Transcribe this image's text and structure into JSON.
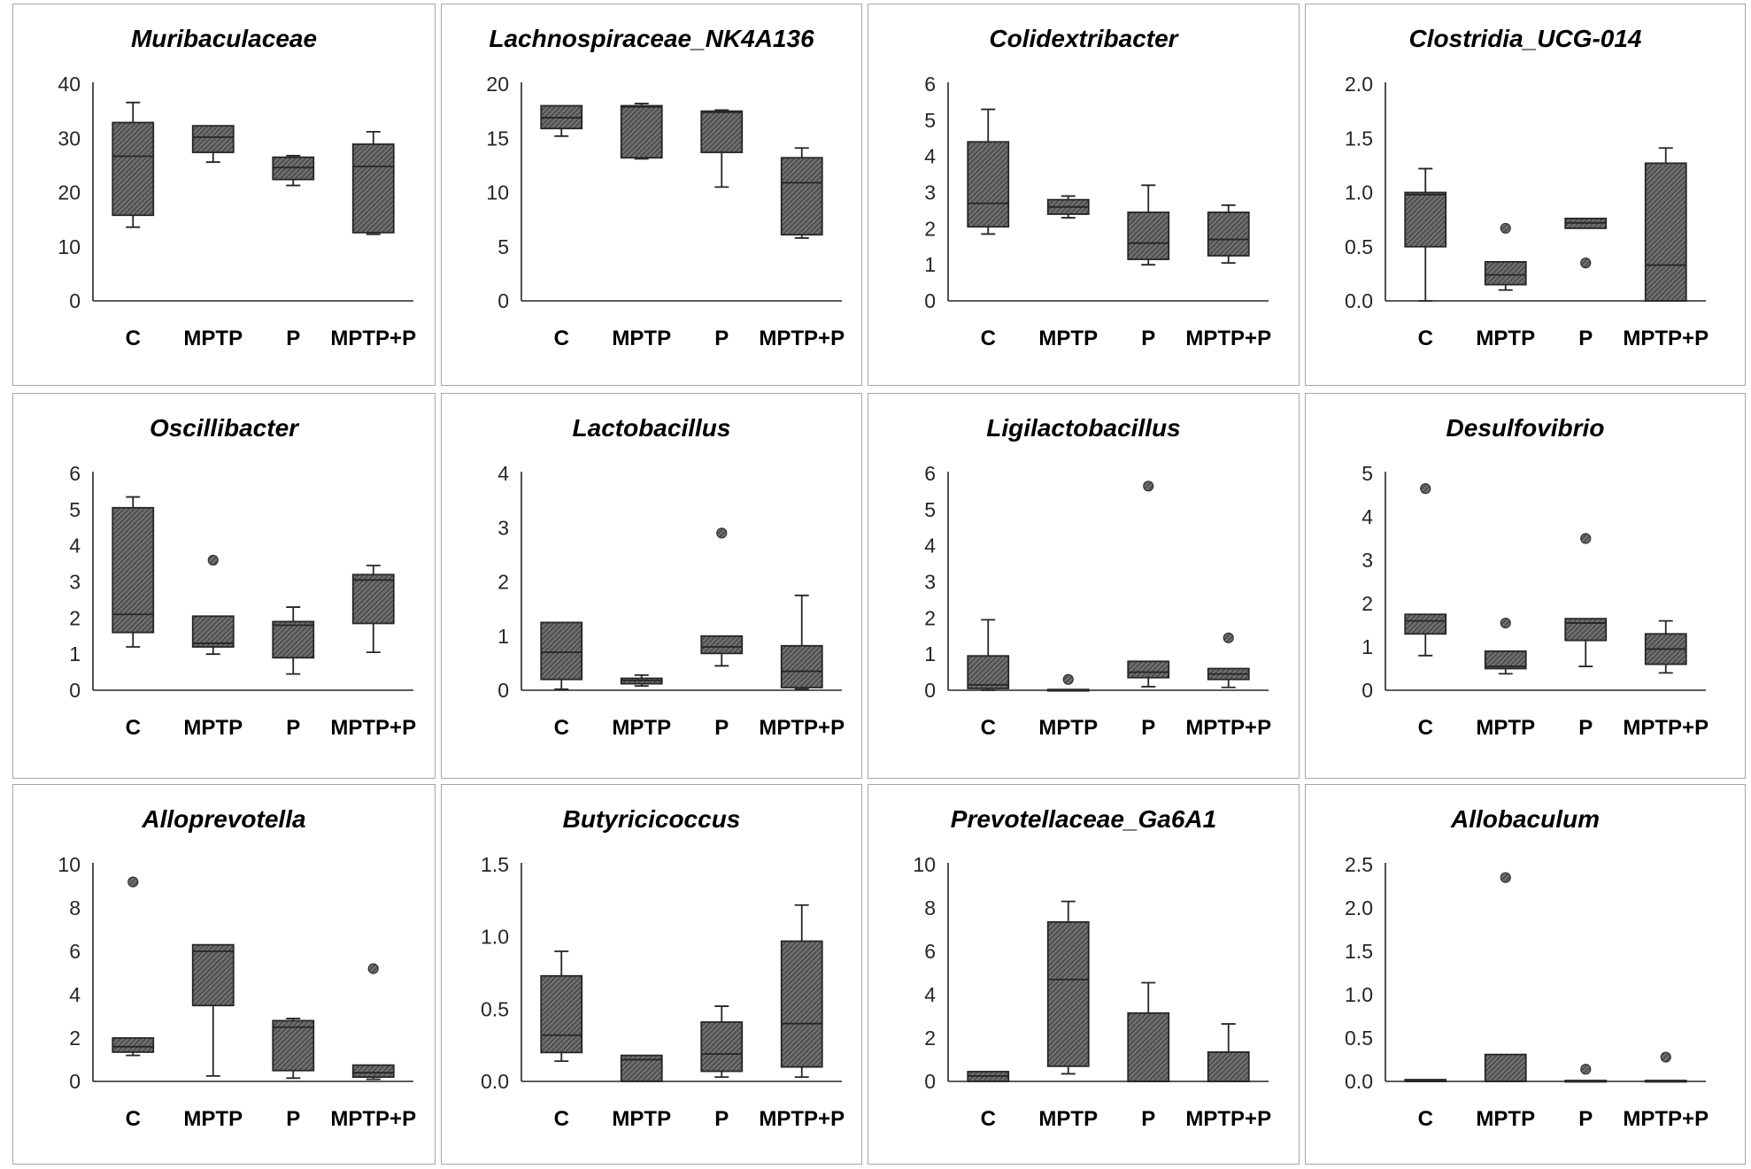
{
  "colors": {
    "box_fill": "#6e6e6e",
    "hatch": "#3a3a3a",
    "axis": "#262626",
    "panel_border": "#a6a6a6"
  },
  "chart_data": [
    {
      "type": "boxplot",
      "title": "Muribaculaceae",
      "categories": [
        "C",
        "MPTP",
        "P",
        "MPTP+P"
      ],
      "ylim": [
        0,
        40
      ],
      "yticks": [
        "0",
        "10",
        "20",
        "30",
        "40"
      ],
      "ytick_values": [
        0,
        10,
        20,
        30,
        40
      ],
      "boxes": [
        {
          "min": 13.6,
          "q1": 15.8,
          "median": 26.7,
          "q3": 32.9,
          "max": 36.6,
          "outliers": []
        },
        {
          "min": 25.6,
          "q1": 27.4,
          "median": 30.2,
          "q3": 32.3,
          "max": 32.3,
          "outliers": []
        },
        {
          "min": 21.3,
          "q1": 22.4,
          "median": 24.6,
          "q3": 26.5,
          "max": 26.8,
          "outliers": []
        },
        {
          "min": 12.3,
          "q1": 12.6,
          "median": 24.8,
          "q3": 28.9,
          "max": 31.2,
          "outliers": []
        }
      ]
    },
    {
      "type": "boxplot",
      "title": "Lachnospiraceae_NK4A136",
      "categories": [
        "C",
        "MPTP",
        "P",
        "MPTP+P"
      ],
      "ylim": [
        0,
        20
      ],
      "yticks": [
        "0",
        "5",
        "10",
        "15",
        "20"
      ],
      "ytick_values": [
        0,
        5,
        10,
        15,
        20
      ],
      "boxes": [
        {
          "min": 15.2,
          "q1": 15.9,
          "median": 16.9,
          "q3": 18.0,
          "max": 18.0,
          "outliers": []
        },
        {
          "min": 13.1,
          "q1": 13.2,
          "median": 17.9,
          "q3": 18.0,
          "max": 18.2,
          "outliers": []
        },
        {
          "min": 10.5,
          "q1": 13.7,
          "median": 17.4,
          "q3": 17.5,
          "max": 17.6,
          "outliers": []
        },
        {
          "min": 5.8,
          "q1": 6.1,
          "median": 10.9,
          "q3": 13.2,
          "max": 14.1,
          "outliers": []
        }
      ]
    },
    {
      "type": "boxplot",
      "title": "Colidextribacter",
      "categories": [
        "C",
        "MPTP",
        "P",
        "MPTP+P"
      ],
      "ylim": [
        0,
        6
      ],
      "yticks": [
        "0",
        "1",
        "2",
        "3",
        "4",
        "5",
        "6"
      ],
      "ytick_values": [
        0,
        1,
        2,
        3,
        4,
        5,
        6
      ],
      "boxes": [
        {
          "min": 1.85,
          "q1": 2.05,
          "median": 2.7,
          "q3": 4.4,
          "max": 5.3,
          "outliers": []
        },
        {
          "min": 2.3,
          "q1": 2.4,
          "median": 2.6,
          "q3": 2.8,
          "max": 2.9,
          "outliers": []
        },
        {
          "min": 1.0,
          "q1": 1.15,
          "median": 1.6,
          "q3": 2.45,
          "max": 3.2,
          "outliers": []
        },
        {
          "min": 1.05,
          "q1": 1.25,
          "median": 1.7,
          "q3": 2.45,
          "max": 2.65,
          "outliers": []
        }
      ]
    },
    {
      "type": "boxplot",
      "title": "Clostridia_UCG-014",
      "categories": [
        "C",
        "MPTP",
        "P",
        "MPTP+P"
      ],
      "ylim": [
        0,
        2
      ],
      "yticks": [
        "0.0",
        "0.5",
        "1.0",
        "1.5",
        "2.0"
      ],
      "ytick_values": [
        0,
        0.5,
        1.0,
        1.5,
        2.0
      ],
      "boxes": [
        {
          "min": 0.0,
          "q1": 0.5,
          "median": 0.98,
          "q3": 1.0,
          "max": 1.22,
          "outliers": []
        },
        {
          "min": 0.1,
          "q1": 0.15,
          "median": 0.24,
          "q3": 0.36,
          "max": 0.36,
          "outliers": [
            0.67
          ]
        },
        {
          "min": 0.67,
          "q1": 0.67,
          "median": 0.72,
          "q3": 0.76,
          "max": 0.76,
          "outliers": [
            0.35
          ]
        },
        {
          "min": 0.0,
          "q1": 0.0,
          "median": 0.33,
          "q3": 1.27,
          "max": 1.41,
          "outliers": []
        }
      ]
    },
    {
      "type": "boxplot",
      "title": "Oscillibacter",
      "categories": [
        "C",
        "MPTP",
        "P",
        "MPTP+P"
      ],
      "ylim": [
        0,
        6
      ],
      "yticks": [
        "0",
        "1",
        "2",
        "3",
        "4",
        "5",
        "6"
      ],
      "ytick_values": [
        0,
        1,
        2,
        3,
        4,
        5,
        6
      ],
      "boxes": [
        {
          "min": 1.2,
          "q1": 1.6,
          "median": 2.1,
          "q3": 5.05,
          "max": 5.35,
          "outliers": []
        },
        {
          "min": 1.0,
          "q1": 1.2,
          "median": 1.3,
          "q3": 2.05,
          "max": 2.05,
          "outliers": [
            3.6
          ]
        },
        {
          "min": 0.45,
          "q1": 0.9,
          "median": 1.8,
          "q3": 1.9,
          "max": 2.3,
          "outliers": []
        },
        {
          "min": 1.05,
          "q1": 1.85,
          "median": 3.05,
          "q3": 3.2,
          "max": 3.45,
          "outliers": []
        }
      ]
    },
    {
      "type": "boxplot",
      "title": "Lactobacillus",
      "categories": [
        "C",
        "MPTP",
        "P",
        "MPTP+P"
      ],
      "ylim": [
        0,
        4
      ],
      "yticks": [
        "0",
        "1",
        "2",
        "3",
        "4"
      ],
      "ytick_values": [
        0,
        1,
        2,
        3,
        4
      ],
      "boxes": [
        {
          "min": 0.02,
          "q1": 0.2,
          "median": 0.7,
          "q3": 1.25,
          "max": 1.25,
          "outliers": []
        },
        {
          "min": 0.08,
          "q1": 0.12,
          "median": 0.18,
          "q3": 0.22,
          "max": 0.28,
          "outliers": []
        },
        {
          "min": 0.45,
          "q1": 0.68,
          "median": 0.8,
          "q3": 1.0,
          "max": 1.0,
          "outliers": [
            2.9
          ]
        },
        {
          "min": 0.02,
          "q1": 0.05,
          "median": 0.35,
          "q3": 0.82,
          "max": 1.75,
          "outliers": []
        }
      ]
    },
    {
      "type": "boxplot",
      "title": "Ligilactobacillus",
      "categories": [
        "C",
        "MPTP",
        "P",
        "MPTP+P"
      ],
      "ylim": [
        0,
        6
      ],
      "yticks": [
        "0",
        "1",
        "2",
        "3",
        "4",
        "5",
        "6"
      ],
      "ytick_values": [
        0,
        1,
        2,
        3,
        4,
        5,
        6
      ],
      "boxes": [
        {
          "min": 0.0,
          "q1": 0.05,
          "median": 0.15,
          "q3": 0.95,
          "max": 1.95,
          "outliers": []
        },
        {
          "min": 0.0,
          "q1": 0.0,
          "median": 0.0,
          "q3": 0.02,
          "max": 0.02,
          "outliers": [
            0.3
          ]
        },
        {
          "min": 0.1,
          "q1": 0.35,
          "median": 0.5,
          "q3": 0.8,
          "max": 0.8,
          "outliers": [
            5.65
          ]
        },
        {
          "min": 0.08,
          "q1": 0.3,
          "median": 0.45,
          "q3": 0.6,
          "max": 0.6,
          "outliers": [
            1.45
          ]
        }
      ]
    },
    {
      "type": "boxplot",
      "title": "Desulfovibrio",
      "categories": [
        "C",
        "MPTP",
        "P",
        "MPTP+P"
      ],
      "ylim": [
        0,
        5
      ],
      "yticks": [
        "0",
        "1",
        "2",
        "3",
        "4",
        "5"
      ],
      "ytick_values": [
        0,
        1,
        2,
        3,
        4,
        5
      ],
      "boxes": [
        {
          "min": 0.8,
          "q1": 1.3,
          "median": 1.6,
          "q3": 1.75,
          "max": 1.75,
          "outliers": [
            4.65
          ]
        },
        {
          "min": 0.38,
          "q1": 0.5,
          "median": 0.55,
          "q3": 0.9,
          "max": 0.9,
          "outliers": [
            1.55
          ]
        },
        {
          "min": 0.55,
          "q1": 1.15,
          "median": 1.55,
          "q3": 1.65,
          "max": 1.65,
          "outliers": [
            3.5
          ]
        },
        {
          "min": 0.4,
          "q1": 0.6,
          "median": 0.95,
          "q3": 1.3,
          "max": 1.6,
          "outliers": []
        }
      ]
    },
    {
      "type": "boxplot",
      "title": "Alloprevotella",
      "categories": [
        "C",
        "MPTP",
        "P",
        "MPTP+P"
      ],
      "ylim": [
        0,
        10
      ],
      "yticks": [
        "0",
        "2",
        "4",
        "6",
        "8",
        "10"
      ],
      "ytick_values": [
        0,
        2,
        4,
        6,
        8,
        10
      ],
      "boxes": [
        {
          "min": 1.2,
          "q1": 1.35,
          "median": 1.6,
          "q3": 2.0,
          "max": 2.0,
          "outliers": [
            9.2
          ]
        },
        {
          "min": 0.25,
          "q1": 3.5,
          "median": 6.0,
          "q3": 6.3,
          "max": 6.3,
          "outliers": []
        },
        {
          "min": 0.15,
          "q1": 0.5,
          "median": 2.5,
          "q3": 2.8,
          "max": 2.9,
          "outliers": []
        },
        {
          "min": 0.1,
          "q1": 0.2,
          "median": 0.4,
          "q3": 0.75,
          "max": 0.75,
          "outliers": [
            5.2
          ]
        }
      ]
    },
    {
      "type": "boxplot",
      "title": "Butyricicoccus",
      "categories": [
        "C",
        "MPTP",
        "P",
        "MPTP+P"
      ],
      "ylim": [
        0,
        1.5
      ],
      "yticks": [
        "0.0",
        "0.5",
        "1.0",
        "1.5"
      ],
      "ytick_values": [
        0,
        0.5,
        1.0,
        1.5
      ],
      "boxes": [
        {
          "min": 0.14,
          "q1": 0.2,
          "median": 0.32,
          "q3": 0.73,
          "max": 0.9,
          "outliers": []
        },
        {
          "min": 0.0,
          "q1": 0.0,
          "median": 0.15,
          "q3": 0.18,
          "max": 0.18,
          "outliers": []
        },
        {
          "min": 0.03,
          "q1": 0.07,
          "median": 0.19,
          "q3": 0.41,
          "max": 0.52,
          "outliers": []
        },
        {
          "min": 0.03,
          "q1": 0.1,
          "median": 0.4,
          "q3": 0.97,
          "max": 1.22,
          "outliers": []
        }
      ]
    },
    {
      "type": "boxplot",
      "title": "Prevotellaceae_Ga6A1",
      "categories": [
        "C",
        "MPTP",
        "P",
        "MPTP+P"
      ],
      "ylim": [
        0,
        10
      ],
      "yticks": [
        "0",
        "2",
        "4",
        "6",
        "8",
        "10"
      ],
      "ytick_values": [
        0,
        2,
        4,
        6,
        8,
        10
      ],
      "boxes": [
        {
          "min": 0.0,
          "q1": 0.0,
          "median": 0.25,
          "q3": 0.45,
          "max": 0.45,
          "outliers": []
        },
        {
          "min": 0.35,
          "q1": 0.7,
          "median": 4.7,
          "q3": 7.35,
          "max": 8.3,
          "outliers": []
        },
        {
          "min": 0.0,
          "q1": 0.0,
          "median": 0.0,
          "q3": 3.15,
          "max": 4.55,
          "outliers": []
        },
        {
          "min": 0.0,
          "q1": 0.0,
          "median": 0.0,
          "q3": 1.35,
          "max": 2.65,
          "outliers": []
        }
      ]
    },
    {
      "type": "boxplot",
      "title": "Allobaculum",
      "categories": [
        "C",
        "MPTP",
        "P",
        "MPTP+P"
      ],
      "ylim": [
        0,
        2.5
      ],
      "yticks": [
        "0.0",
        "0.5",
        "1.0",
        "1.5",
        "2.0",
        "2.5"
      ],
      "ytick_values": [
        0,
        0.5,
        1.0,
        1.5,
        2.0,
        2.5
      ],
      "boxes": [
        {
          "min": 0.0,
          "q1": 0.0,
          "median": 0.0,
          "q3": 0.02,
          "max": 0.02,
          "outliers": []
        },
        {
          "min": 0.0,
          "q1": 0.0,
          "median": 0.0,
          "q3": 0.31,
          "max": 0.31,
          "outliers": [
            2.35
          ]
        },
        {
          "min": 0.0,
          "q1": 0.0,
          "median": 0.0,
          "q3": 0.01,
          "max": 0.01,
          "outliers": [
            0.14
          ]
        },
        {
          "min": 0.0,
          "q1": 0.0,
          "median": 0.0,
          "q3": 0.01,
          "max": 0.01,
          "outliers": [
            0.28
          ]
        }
      ]
    }
  ]
}
